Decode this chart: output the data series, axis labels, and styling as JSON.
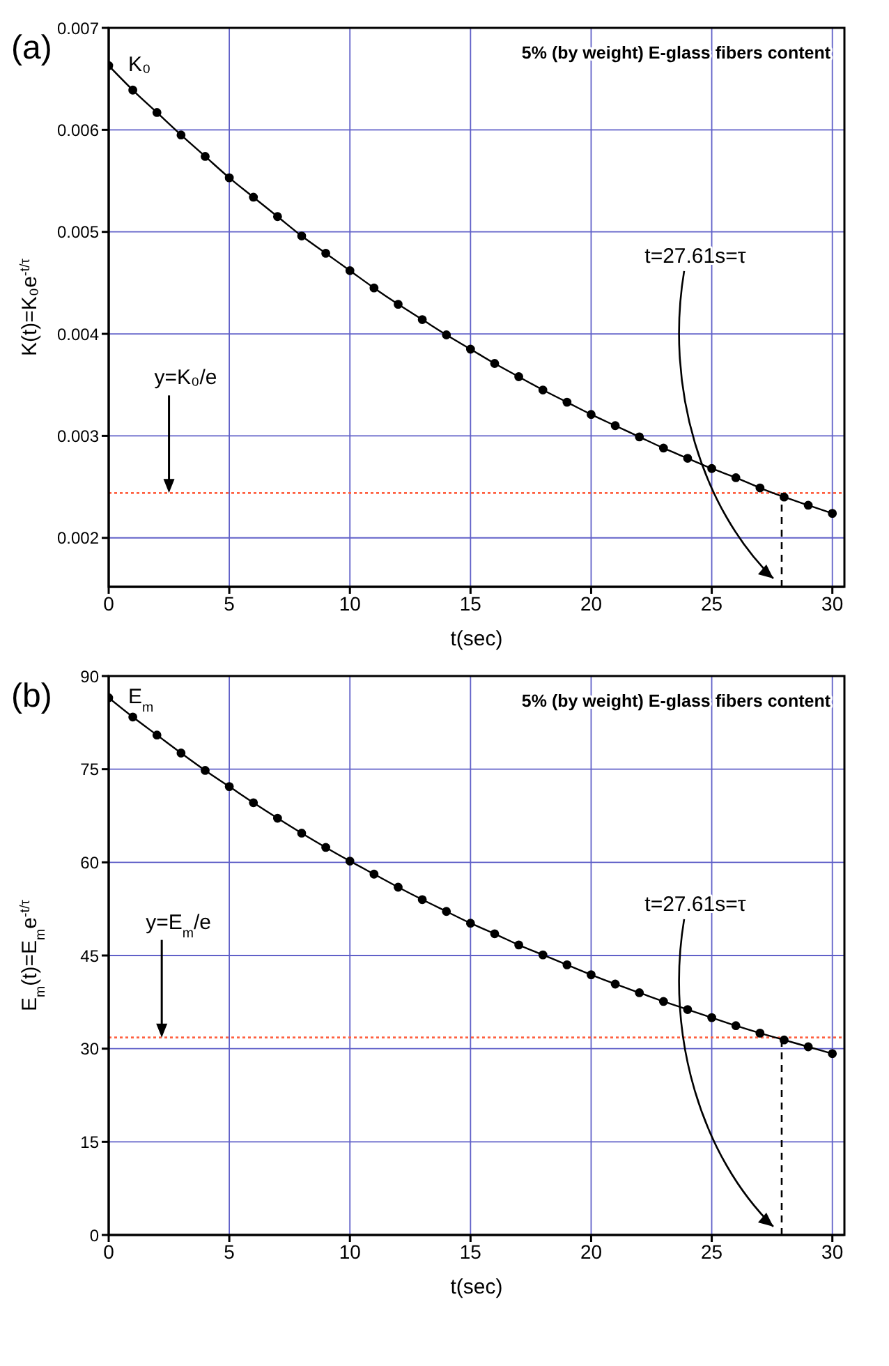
{
  "chart_data": [
    {
      "type": "line",
      "title": "5% (by weight) E-glass fibers content",
      "xlabel": "t(sec)",
      "ylabel": "K(t)=K₀e$^{-t/τ}$",
      "annotations": [
        "(a)",
        {
          "text": "K₀",
          "x": 0,
          "y": 0.00663
        },
        {
          "text": "y=K₀/e",
          "x": 2.5,
          "y": 0.00244
        },
        "t=27.61s=τ"
      ],
      "x": [
        0,
        1,
        2,
        3,
        4,
        5,
        6,
        7,
        8,
        9,
        10,
        11,
        12,
        13,
        14,
        15,
        16,
        17,
        18,
        19,
        20,
        21,
        22,
        23,
        24,
        25,
        26,
        27,
        28,
        29,
        30
      ],
      "series": [
        {
          "color": "#000000",
          "values": [
            0.00663,
            0.00639,
            0.00617,
            0.00595,
            0.00574,
            0.00553,
            0.00534,
            0.00515,
            0.00496,
            0.00479,
            0.00462,
            0.00445,
            0.00429,
            0.00414,
            0.00399,
            0.00385,
            0.00371,
            0.00358,
            0.00345,
            0.00333,
            0.00321,
            0.0031,
            0.00299,
            0.00288,
            0.00278,
            0.00268,
            0.00259,
            0.00249,
            0.0024,
            0.00232,
            0.00224
          ]
        }
      ],
      "xlim": [
        0,
        30.5
      ],
      "xticks": [
        0,
        5,
        10,
        15,
        20,
        25,
        30
      ],
      "ylim": [
        0.00152,
        0.007
      ],
      "yticks": [
        0.002,
        0.003,
        0.004,
        0.005,
        0.006,
        0.007
      ],
      "ref_lines": [
        {
          "axis": "y",
          "value": 0.00244,
          "color": "#ff6040",
          "line_style": "dotted"
        },
        {
          "axis": "x",
          "value": 27.9,
          "color": "#000000",
          "line_style": "dashed"
        }
      ],
      "grid": true,
      "marker": "circle",
      "line_style": "solid"
    },
    {
      "type": "line",
      "title": "5% (by weight) E-glass fibers content",
      "xlabel": "t(sec)",
      "ylabel": "E$_{m}$(t)=E$_{m}$e$^{-t/τ}$",
      "annotations": [
        "(b)",
        {
          "text": "E$_{m}$",
          "x": 0,
          "y": 86.5
        },
        {
          "text": "y=E$_{m}$/e",
          "x": 2.2,
          "y": 31.8
        },
        "t=27.61s=τ"
      ],
      "x": [
        0,
        1,
        2,
        3,
        4,
        5,
        6,
        7,
        8,
        9,
        10,
        11,
        12,
        13,
        14,
        15,
        16,
        17,
        18,
        19,
        20,
        21,
        22,
        23,
        24,
        25,
        26,
        27,
        28,
        29,
        30
      ],
      "series": [
        {
          "color": "#000000",
          "values": [
            86.5,
            83.4,
            80.5,
            77.6,
            74.8,
            72.2,
            69.6,
            67.1,
            64.7,
            62.4,
            60.2,
            58.1,
            56.0,
            54.0,
            52.1,
            50.2,
            48.5,
            46.7,
            45.1,
            43.5,
            41.9,
            40.4,
            39.0,
            37.6,
            36.3,
            35.0,
            33.7,
            32.5,
            31.4,
            30.3,
            29.2
          ]
        }
      ],
      "xlim": [
        0,
        30.5
      ],
      "xticks": [
        0,
        5,
        10,
        15,
        20,
        25,
        30
      ],
      "ylim": [
        0,
        90
      ],
      "yticks": [
        0,
        15,
        30,
        45,
        60,
        75,
        90
      ],
      "ref_lines": [
        {
          "axis": "y",
          "value": 31.8,
          "color": "#ff6040",
          "line_style": "dotted"
        },
        {
          "axis": "x",
          "value": 27.9,
          "color": "#000000",
          "line_style": "dashed"
        }
      ],
      "grid": true,
      "marker": "circle",
      "line_style": "solid"
    }
  ]
}
